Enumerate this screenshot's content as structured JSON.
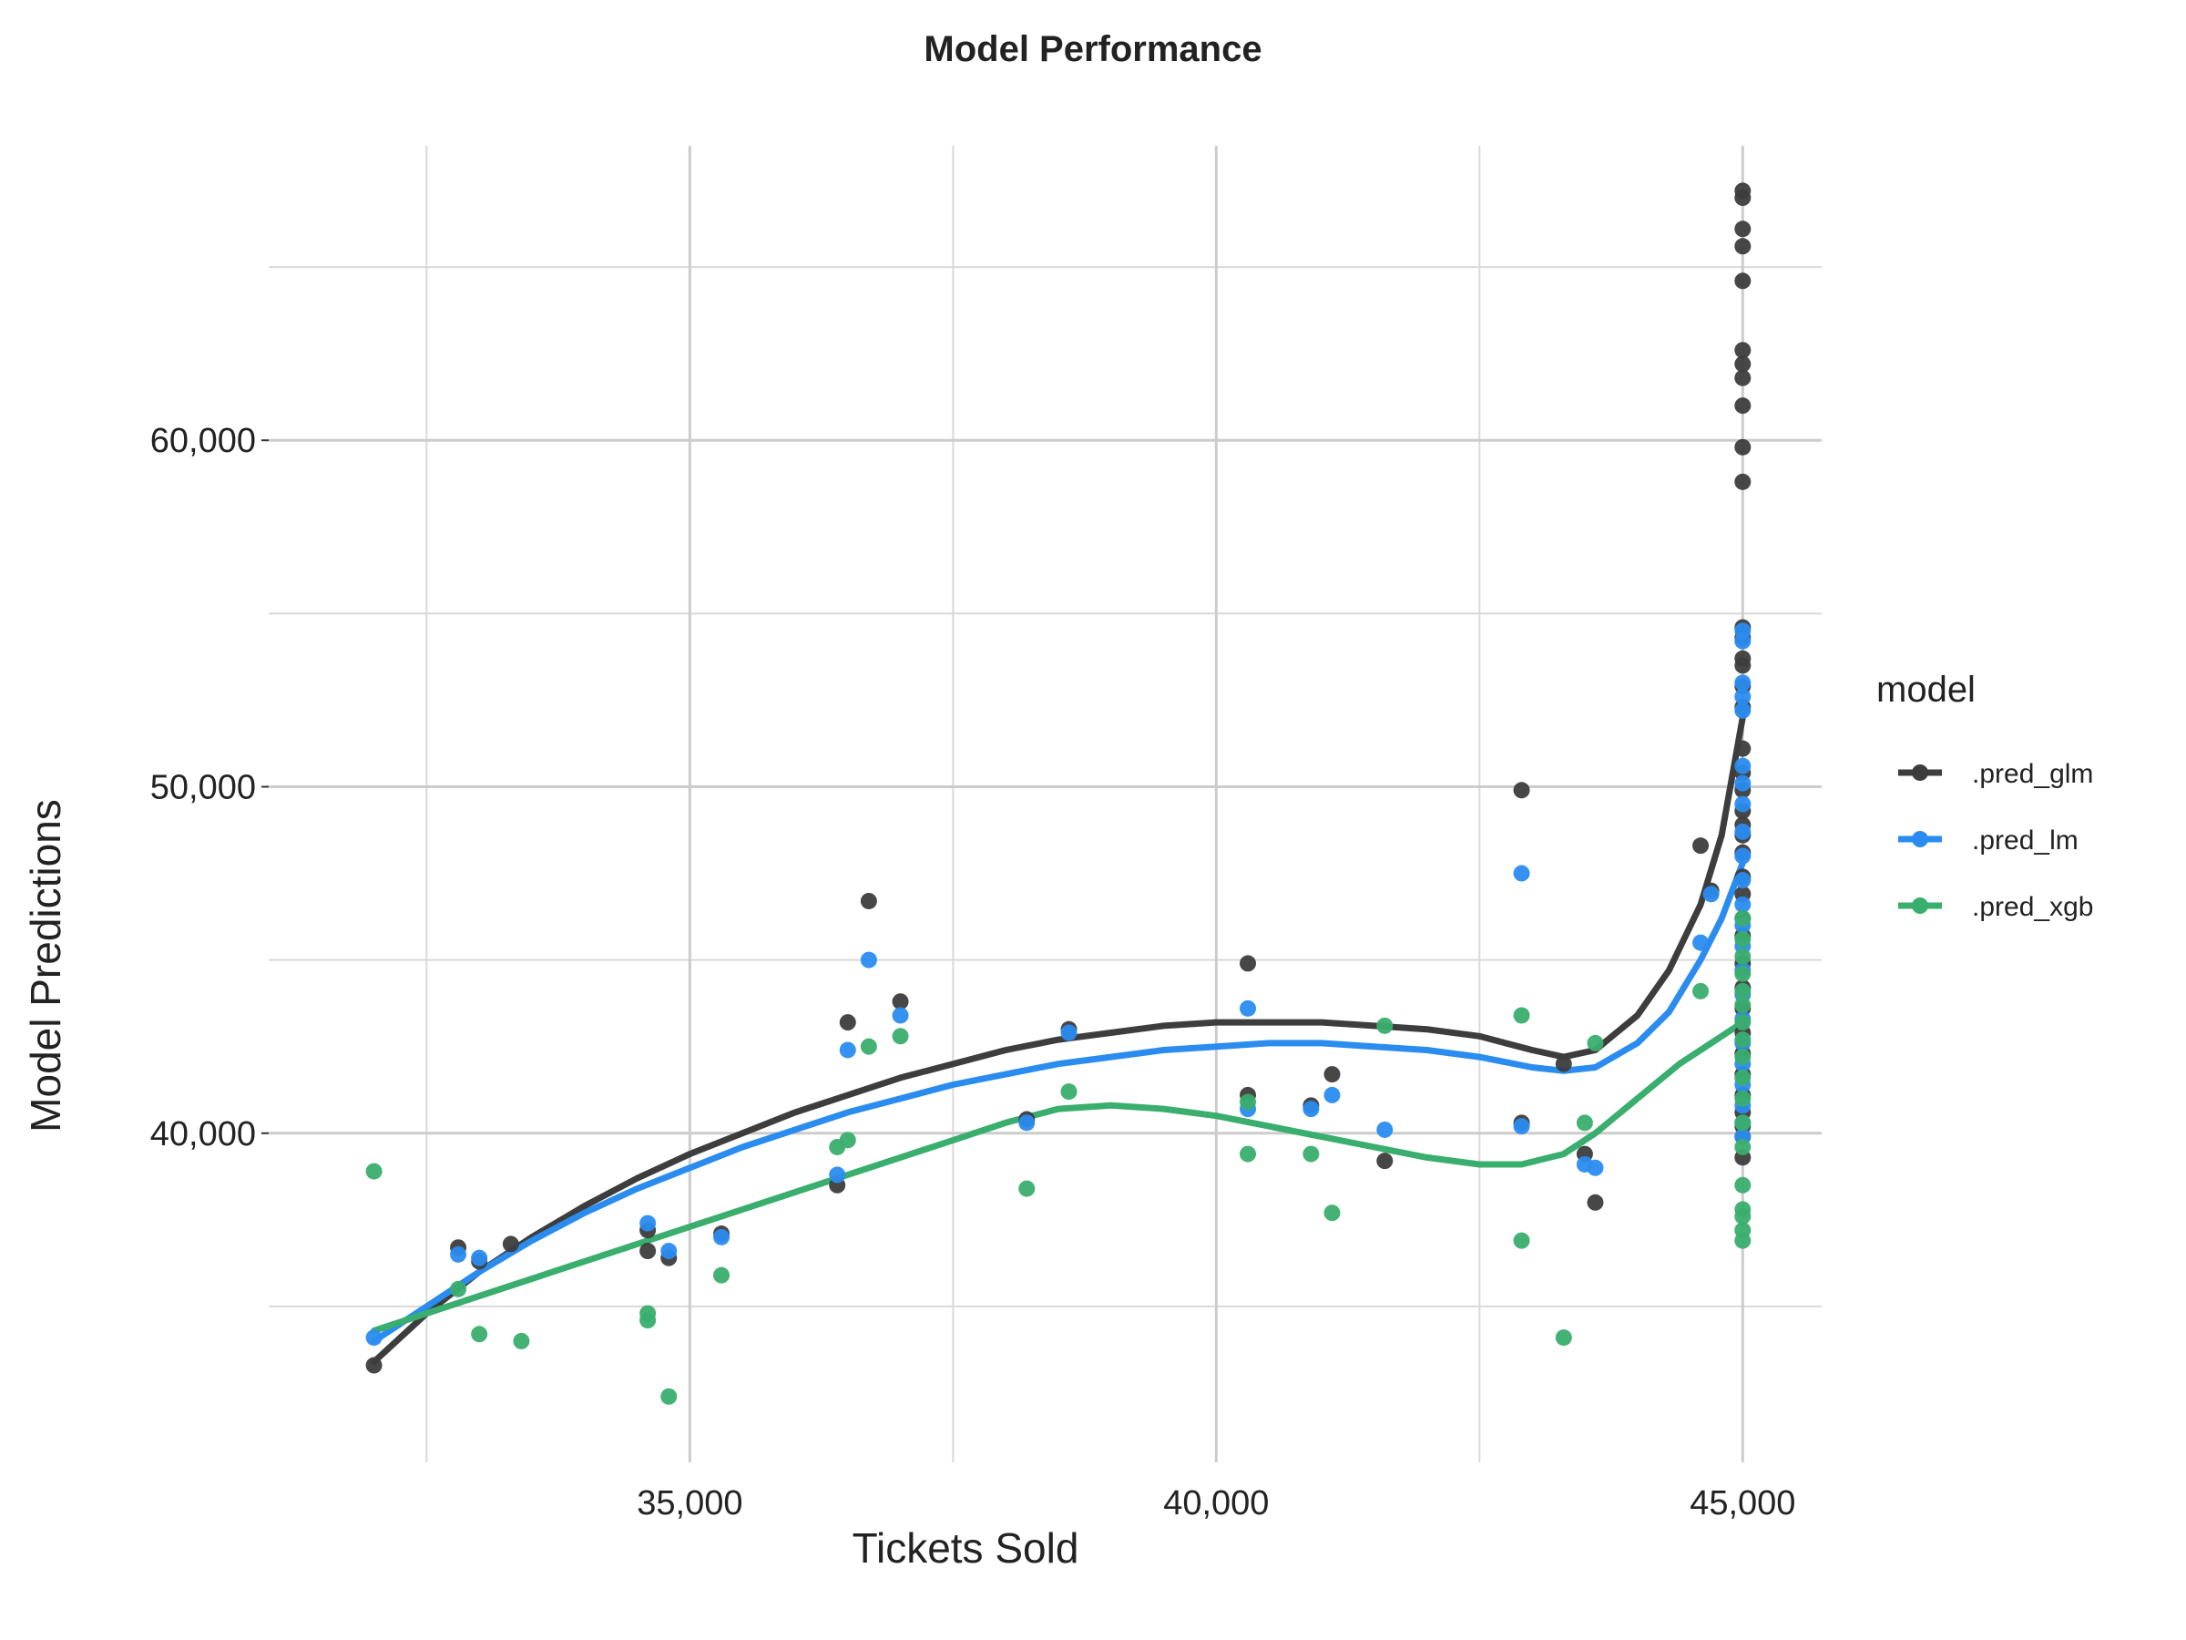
{
  "chart_data": {
    "type": "scatter",
    "title": "Model Performance",
    "xlabel": "Tickets Sold",
    "ylabel": "Model Predictions",
    "xlim": [
      31000,
      45750
    ],
    "ylim": [
      30500,
      68500
    ],
    "x_ticks": [
      35000,
      40000,
      45000
    ],
    "x_tick_labels": [
      "35,000",
      "40,000",
      "45,000"
    ],
    "y_ticks": [
      40000,
      50000,
      60000
    ],
    "y_tick_labels": [
      "40,000",
      "50,000",
      "60,000"
    ],
    "grid": true,
    "legend": {
      "title": "model",
      "placement": "right"
    },
    "series": [
      {
        "name": ".pred_glm",
        "color": "#3d3d3d",
        "points": [
          [
            32000,
            33300
          ],
          [
            32800,
            36700
          ],
          [
            33000,
            36300
          ],
          [
            33300,
            36800
          ],
          [
            34600,
            36600
          ],
          [
            34600,
            37200
          ],
          [
            34800,
            36400
          ],
          [
            35300,
            37100
          ],
          [
            36400,
            38500
          ],
          [
            36500,
            43200
          ],
          [
            36700,
            46700
          ],
          [
            37000,
            43800
          ],
          [
            38200,
            40400
          ],
          [
            38600,
            43000
          ],
          [
            40300,
            44900
          ],
          [
            40300,
            41100
          ],
          [
            40900,
            40800
          ],
          [
            41100,
            41700
          ],
          [
            41600,
            39200
          ],
          [
            42900,
            49900
          ],
          [
            42900,
            40300
          ],
          [
            43300,
            42000
          ],
          [
            43500,
            39400
          ],
          [
            43600,
            38000
          ],
          [
            44600,
            48300
          ],
          [
            44700,
            47000
          ],
          [
            45000,
            67200
          ],
          [
            45000,
            67000
          ],
          [
            45000,
            66100
          ],
          [
            45000,
            65600
          ],
          [
            45000,
            64600
          ],
          [
            45000,
            62600
          ],
          [
            45000,
            62200
          ],
          [
            45000,
            61800
          ],
          [
            45000,
            61000
          ],
          [
            45000,
            59800
          ],
          [
            45000,
            58800
          ],
          [
            45000,
            54600
          ],
          [
            45000,
            54300
          ],
          [
            45000,
            53700
          ],
          [
            45000,
            53500
          ],
          [
            45000,
            52900
          ],
          [
            45000,
            52300
          ],
          [
            45000,
            51100
          ],
          [
            45000,
            50400
          ],
          [
            45000,
            49900
          ],
          [
            45000,
            49300
          ],
          [
            45000,
            48900
          ],
          [
            45000,
            48600
          ],
          [
            45000,
            48100
          ],
          [
            45000,
            47400
          ],
          [
            45000,
            46900
          ],
          [
            45000,
            46200
          ],
          [
            45000,
            45700
          ],
          [
            45000,
            44900
          ],
          [
            45000,
            44200
          ],
          [
            45000,
            43600
          ],
          [
            45000,
            42900
          ],
          [
            45000,
            42300
          ],
          [
            45000,
            41700
          ],
          [
            45000,
            41100
          ],
          [
            45000,
            40600
          ],
          [
            45000,
            40200
          ],
          [
            45000,
            39900
          ],
          [
            45000,
            39300
          ]
        ],
        "smooth": [
          [
            32000,
            33400
          ],
          [
            32500,
            34800
          ],
          [
            33000,
            36000
          ],
          [
            33500,
            37000
          ],
          [
            34000,
            37900
          ],
          [
            34500,
            38700
          ],
          [
            35000,
            39400
          ],
          [
            35500,
            40000
          ],
          [
            36000,
            40600
          ],
          [
            36500,
            41100
          ],
          [
            37000,
            41600
          ],
          [
            37500,
            42000
          ],
          [
            38000,
            42400
          ],
          [
            38500,
            42700
          ],
          [
            39000,
            42900
          ],
          [
            39500,
            43100
          ],
          [
            40000,
            43200
          ],
          [
            40500,
            43200
          ],
          [
            41000,
            43200
          ],
          [
            41500,
            43100
          ],
          [
            42000,
            43000
          ],
          [
            42500,
            42800
          ],
          [
            43000,
            42400
          ],
          [
            43300,
            42200
          ],
          [
            43600,
            42400
          ],
          [
            44000,
            43400
          ],
          [
            44300,
            44700
          ],
          [
            44600,
            46600
          ],
          [
            44800,
            48600
          ],
          [
            45000,
            52000
          ]
        ]
      },
      {
        "name": ".pred_lm",
        "color": "#2b8cf0",
        "points": [
          [
            32000,
            34100
          ],
          [
            32800,
            36500
          ],
          [
            33000,
            36400
          ],
          [
            34600,
            37400
          ],
          [
            34800,
            36600
          ],
          [
            35300,
            37000
          ],
          [
            36400,
            38800
          ],
          [
            36500,
            42400
          ],
          [
            36700,
            45000
          ],
          [
            37000,
            43400
          ],
          [
            38200,
            40300
          ],
          [
            38600,
            42900
          ],
          [
            40300,
            43600
          ],
          [
            40300,
            40700
          ],
          [
            40900,
            40700
          ],
          [
            41100,
            41100
          ],
          [
            41600,
            40100
          ],
          [
            42900,
            47500
          ],
          [
            42900,
            40200
          ],
          [
            43500,
            39100
          ],
          [
            43600,
            39000
          ],
          [
            44600,
            45500
          ],
          [
            44700,
            46900
          ],
          [
            45000,
            54500
          ],
          [
            45000,
            54200
          ],
          [
            45000,
            53000
          ],
          [
            45000,
            52600
          ],
          [
            45000,
            52200
          ],
          [
            45000,
            50600
          ],
          [
            45000,
            50100
          ],
          [
            45000,
            49500
          ],
          [
            45000,
            48700
          ],
          [
            45000,
            48000
          ],
          [
            45000,
            47300
          ],
          [
            45000,
            46600
          ],
          [
            45000,
            46000
          ],
          [
            45000,
            45400
          ],
          [
            45000,
            44700
          ],
          [
            45000,
            44000
          ],
          [
            45000,
            43300
          ],
          [
            45000,
            42600
          ],
          [
            45000,
            42000
          ],
          [
            45000,
            41400
          ],
          [
            45000,
            40800
          ],
          [
            45000,
            40300
          ],
          [
            45000,
            39900
          ]
        ],
        "smooth": [
          [
            32000,
            34000
          ],
          [
            32500,
            35000
          ],
          [
            33000,
            36000
          ],
          [
            33500,
            36900
          ],
          [
            34000,
            37700
          ],
          [
            34500,
            38400
          ],
          [
            35000,
            39000
          ],
          [
            35500,
            39600
          ],
          [
            36000,
            40100
          ],
          [
            36500,
            40600
          ],
          [
            37000,
            41000
          ],
          [
            37500,
            41400
          ],
          [
            38000,
            41700
          ],
          [
            38500,
            42000
          ],
          [
            39000,
            42200
          ],
          [
            39500,
            42400
          ],
          [
            40000,
            42500
          ],
          [
            40500,
            42600
          ],
          [
            41000,
            42600
          ],
          [
            41500,
            42500
          ],
          [
            42000,
            42400
          ],
          [
            42500,
            42200
          ],
          [
            43000,
            41900
          ],
          [
            43300,
            41800
          ],
          [
            43600,
            41900
          ],
          [
            44000,
            42600
          ],
          [
            44300,
            43500
          ],
          [
            44600,
            45000
          ],
          [
            44800,
            46200
          ],
          [
            45000,
            47800
          ]
        ]
      },
      {
        "name": ".pred_xgb",
        "color": "#3aae6e",
        "points": [
          [
            32000,
            38900
          ],
          [
            32800,
            35500
          ],
          [
            33000,
            34200
          ],
          [
            33400,
            34000
          ],
          [
            34600,
            34800
          ],
          [
            34600,
            34600
          ],
          [
            34800,
            32400
          ],
          [
            35300,
            35900
          ],
          [
            36400,
            39600
          ],
          [
            36500,
            39800
          ],
          [
            36700,
            42500
          ],
          [
            37000,
            42800
          ],
          [
            38200,
            38400
          ],
          [
            38600,
            41200
          ],
          [
            40300,
            40900
          ],
          [
            40300,
            39400
          ],
          [
            40900,
            39400
          ],
          [
            41100,
            37700
          ],
          [
            41600,
            43100
          ],
          [
            42900,
            43400
          ],
          [
            42900,
            36900
          ],
          [
            43300,
            34100
          ],
          [
            43500,
            40300
          ],
          [
            43600,
            42600
          ],
          [
            44600,
            44100
          ],
          [
            45000,
            46200
          ],
          [
            45000,
            45600
          ],
          [
            45000,
            45100
          ],
          [
            45000,
            44600
          ],
          [
            45000,
            44100
          ],
          [
            45000,
            43700
          ],
          [
            45000,
            43200
          ],
          [
            45000,
            42700
          ],
          [
            45000,
            42200
          ],
          [
            45000,
            41600
          ],
          [
            45000,
            41000
          ],
          [
            45000,
            40300
          ],
          [
            45000,
            39600
          ],
          [
            45000,
            38500
          ],
          [
            45000,
            37800
          ],
          [
            45000,
            37600
          ],
          [
            45000,
            37200
          ],
          [
            45000,
            36900
          ]
        ],
        "smooth": [
          [
            32000,
            34300
          ],
          [
            32500,
            34800
          ],
          [
            33000,
            35300
          ],
          [
            33500,
            35800
          ],
          [
            34000,
            36300
          ],
          [
            34500,
            36800
          ],
          [
            35000,
            37300
          ],
          [
            35500,
            37800
          ],
          [
            36000,
            38300
          ],
          [
            36500,
            38800
          ],
          [
            37000,
            39300
          ],
          [
            37500,
            39800
          ],
          [
            38000,
            40300
          ],
          [
            38500,
            40700
          ],
          [
            39000,
            40800
          ],
          [
            39500,
            40700
          ],
          [
            40000,
            40500
          ],
          [
            40500,
            40200
          ],
          [
            41000,
            39900
          ],
          [
            41500,
            39600
          ],
          [
            42000,
            39300
          ],
          [
            42500,
            39100
          ],
          [
            42900,
            39100
          ],
          [
            43300,
            39400
          ],
          [
            43600,
            40000
          ],
          [
            44000,
            41000
          ],
          [
            44400,
            42000
          ],
          [
            44700,
            42600
          ],
          [
            45000,
            43200
          ]
        ]
      }
    ]
  }
}
